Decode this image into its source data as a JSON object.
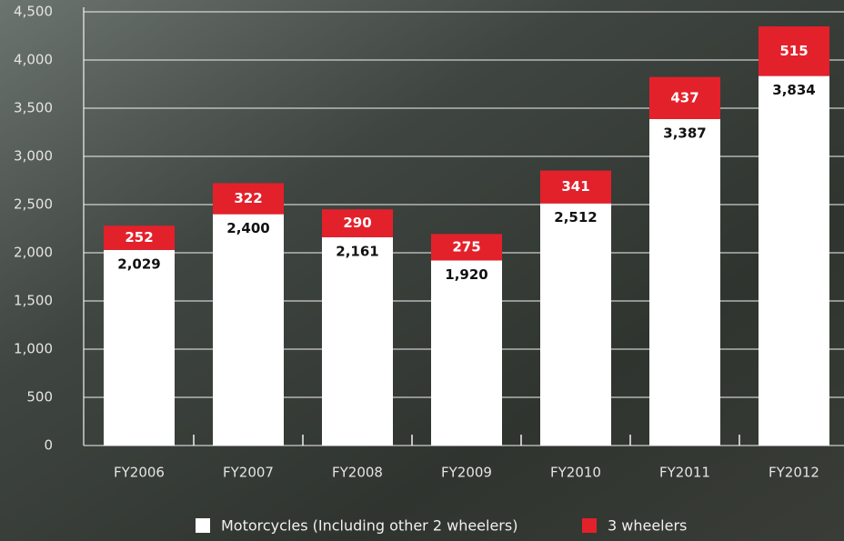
{
  "chart_data": {
    "type": "stacked_bar",
    "categories": [
      "FY2006",
      "FY2007",
      "FY2008",
      "FY2009",
      "FY2010",
      "FY2011",
      "FY2012"
    ],
    "series": [
      {
        "name": "Motorcycles (Including other 2 wheelers)",
        "color": "#ffffff",
        "values": [
          2029,
          2400,
          2161,
          1920,
          2512,
          3387,
          3834
        ],
        "value_labels": [
          "2,029",
          "2,400",
          "2,161",
          "1,920",
          "2,512",
          "3,387",
          "3,834"
        ]
      },
      {
        "name": "3 wheelers",
        "color": "#e3212b",
        "values": [
          252,
          322,
          290,
          275,
          341,
          437,
          515
        ]
      }
    ],
    "ylim": [
      0,
      4500
    ],
    "yticks": [
      0,
      500,
      {
        "value": 1000,
        "label": "1,000"
      },
      {
        "value": 1500,
        "label": "1,500"
      },
      {
        "value": 2000,
        "label": "2,000"
      },
      {
        "value": 2500,
        "label": "2,500"
      },
      {
        "value": 3000,
        "label": "3,000"
      },
      {
        "value": 3500,
        "label": "3,500"
      },
      {
        "value": 4000,
        "label": "4,000"
      },
      {
        "value": 4500,
        "label": "4,500"
      }
    ],
    "grid": true
  }
}
